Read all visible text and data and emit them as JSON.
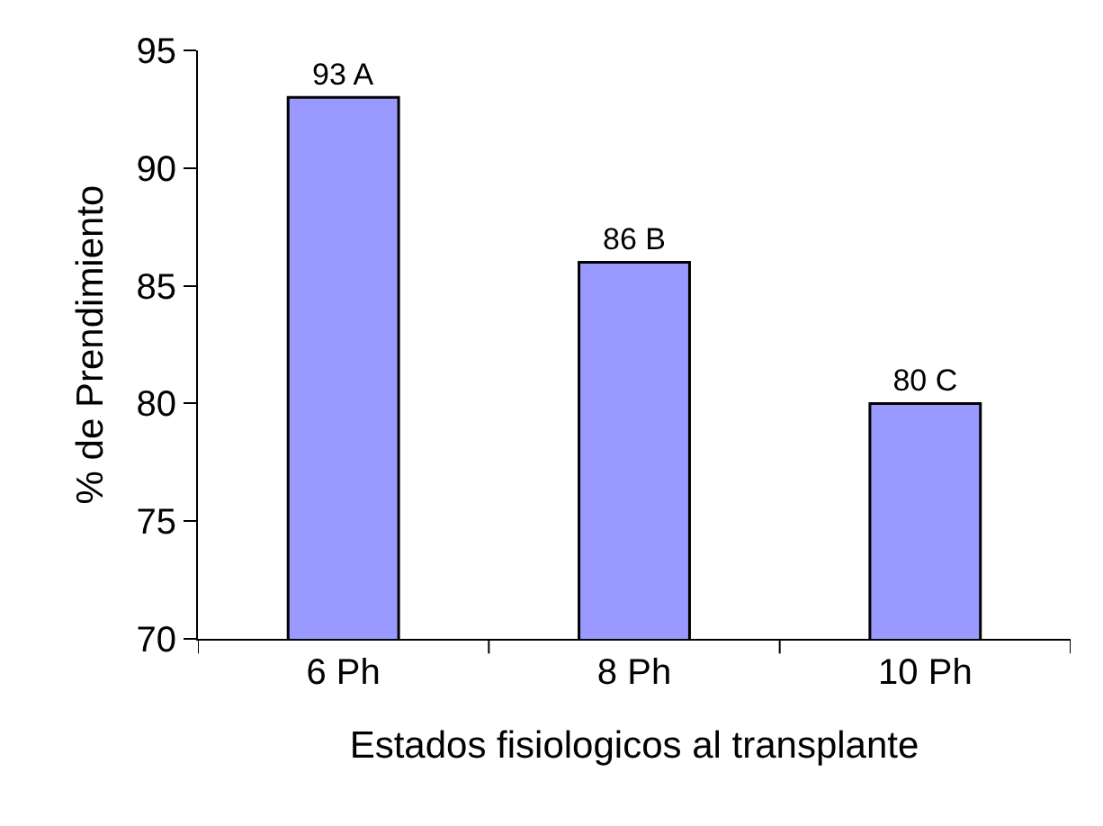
{
  "chart_data": {
    "type": "bar",
    "xlabel": "Estados fisiologicos al transplante",
    "ylabel": "% de Prendimiento",
    "categories": [
      "6 Ph",
      "8 Ph",
      "10 Ph"
    ],
    "values": [
      93,
      86,
      80
    ],
    "value_labels": [
      "93 A",
      "86 B",
      "80 C"
    ],
    "color": "#9999ff",
    "ylim": [
      70,
      95
    ],
    "yticks": [
      70,
      75,
      80,
      85,
      90,
      95
    ],
    "grid": false
  }
}
